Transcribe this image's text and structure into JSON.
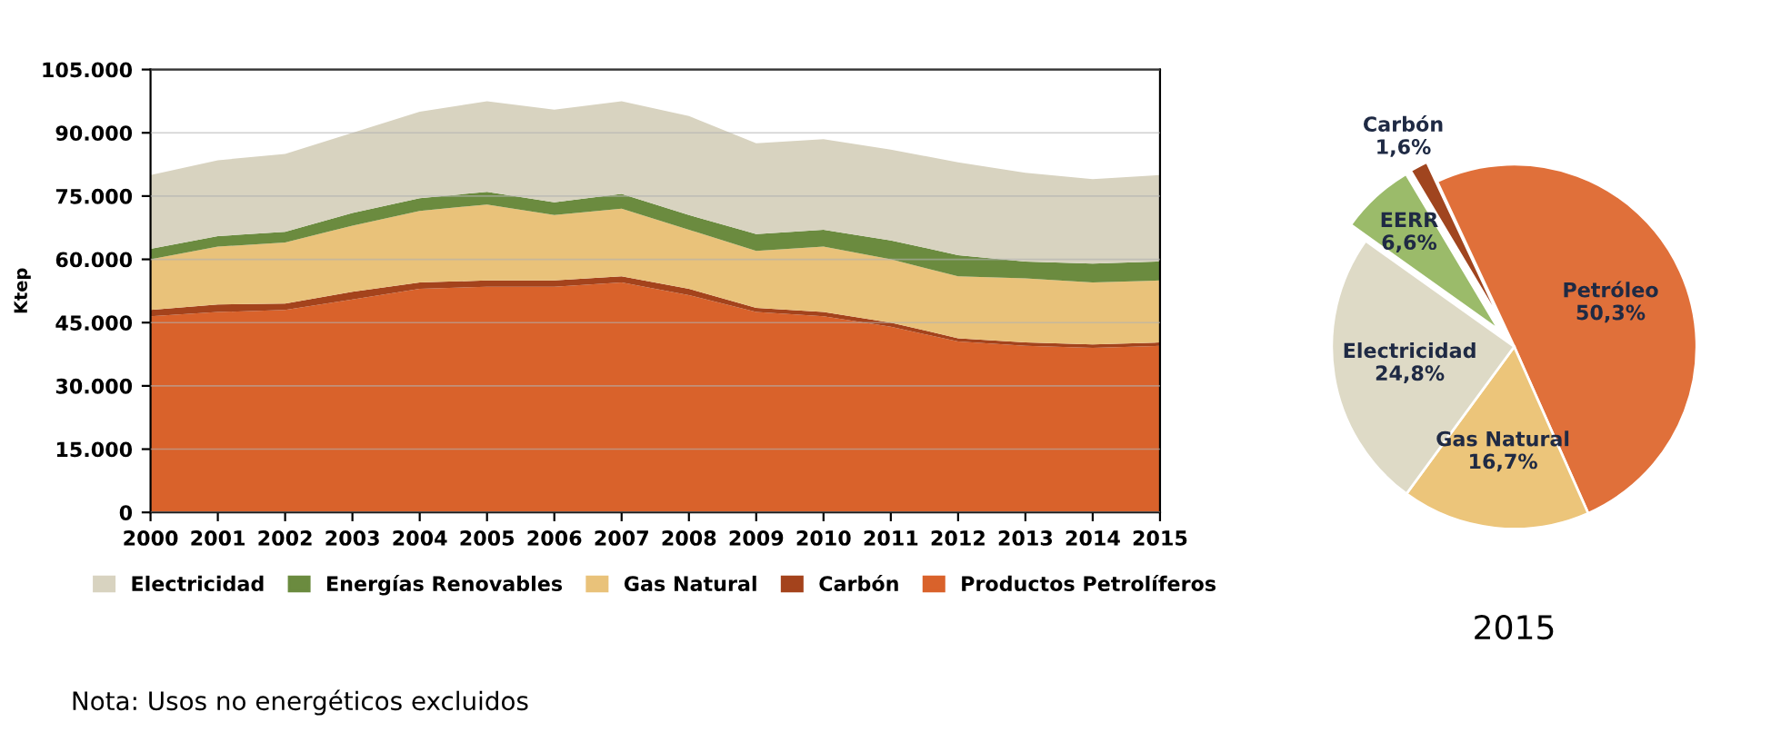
{
  "chart_data": [
    {
      "type": "area",
      "stacked": true,
      "ylabel": "Ktep",
      "x": [
        2000,
        2001,
        2002,
        2003,
        2004,
        2005,
        2006,
        2007,
        2008,
        2009,
        2010,
        2011,
        2012,
        2013,
        2014,
        2015
      ],
      "xlim": [
        2000,
        2015
      ],
      "xticks": [
        2000,
        2001,
        2002,
        2003,
        2004,
        2005,
        2006,
        2007,
        2008,
        2009,
        2010,
        2011,
        2012,
        2013,
        2014,
        2015
      ],
      "ylim": [
        0,
        105000
      ],
      "yticks": [
        {
          "value": 0,
          "label": "0"
        },
        {
          "value": 15000,
          "label": "15.000"
        },
        {
          "value": 30000,
          "label": "30.000"
        },
        {
          "value": 45000,
          "label": "45.000"
        },
        {
          "value": 60000,
          "label": "60.000"
        },
        {
          "value": 75000,
          "label": "75.000"
        },
        {
          "value": 90000,
          "label": "90.000"
        },
        {
          "value": 105000,
          "label": "105.000"
        }
      ],
      "grid": "y",
      "legend": "bottom",
      "series": [
        {
          "name": "Productos Petrolíferos",
          "color": "#d9622b",
          "values": [
            46500,
            47500,
            48000,
            50500,
            53000,
            53500,
            53500,
            54500,
            51500,
            47500,
            46500,
            44000,
            40500,
            39500,
            39000,
            39500
          ]
        },
        {
          "name": "Carbón",
          "color": "#a4431c",
          "values": [
            1500,
            1800,
            1500,
            1800,
            1500,
            1500,
            1500,
            1500,
            1500,
            1000,
            1000,
            1000,
            800,
            800,
            800,
            800
          ]
        },
        {
          "name": "Gas Natural",
          "color": "#e9c27a",
          "values": [
            12000,
            13700,
            14500,
            15700,
            17000,
            18000,
            15500,
            16000,
            14000,
            13500,
            15500,
            15000,
            14700,
            15200,
            14700,
            14700
          ]
        },
        {
          "name": "Energías Renovables",
          "color": "#6b8b3f",
          "values": [
            2500,
            2500,
            2500,
            3000,
            3000,
            3000,
            3000,
            3500,
            3500,
            4000,
            4000,
            4500,
            5000,
            4000,
            4500,
            4500
          ]
        },
        {
          "name": "Electricidad",
          "color": "#d8d3c0",
          "values": [
            17500,
            18000,
            18500,
            19000,
            20500,
            21500,
            22000,
            22000,
            23500,
            21500,
            21500,
            21500,
            22000,
            21000,
            20000,
            20500
          ]
        }
      ],
      "annotations": [
        "Nota: Usos no energéticos excluidos"
      ]
    },
    {
      "type": "pie",
      "title": "2015",
      "categories": [
        "Petróleo",
        "Gas Natural",
        "Electricidad",
        "EERR",
        "Carbón"
      ],
      "values": [
        50.3,
        16.7,
        24.8,
        6.6,
        1.6
      ],
      "value_labels": [
        "50,3%",
        "16,7%",
        "24,8%",
        "6,6%",
        "1,6%"
      ],
      "colors": [
        "#e0703a",
        "#ecc57a",
        "#dedac6",
        "#9bbb6a",
        "#a0451f"
      ]
    }
  ]
}
